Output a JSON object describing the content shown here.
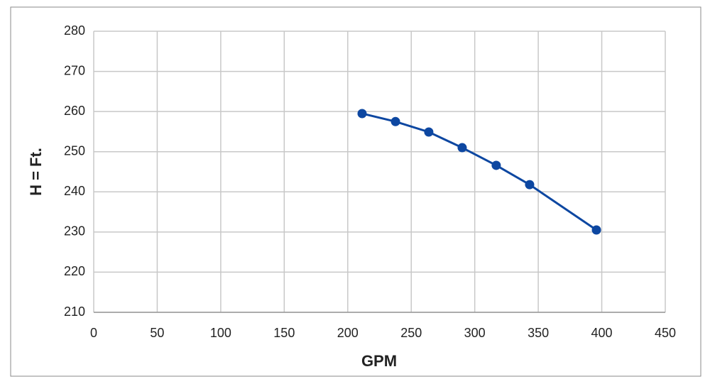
{
  "chart_data": {
    "type": "line",
    "x_label": "GPM",
    "y_label": "H = Ft.",
    "x": [
      211.3,
      237.6,
      263.8,
      290.1,
      316.9,
      343.2,
      395.8
    ],
    "series": [
      {
        "color": "#0d47a1",
        "values": [
          259.5,
          257.5,
          254.9,
          251,
          246.6,
          241.8,
          230.5
        ]
      }
    ],
    "xlim": [
      0,
      450
    ],
    "xticks": [
      0,
      50,
      100,
      150,
      200,
      250,
      300,
      350,
      400,
      450
    ],
    "ylim": [
      210,
      280
    ],
    "yticks": [
      210,
      220,
      230,
      240,
      250,
      260,
      270,
      280
    ],
    "grid": true
  }
}
